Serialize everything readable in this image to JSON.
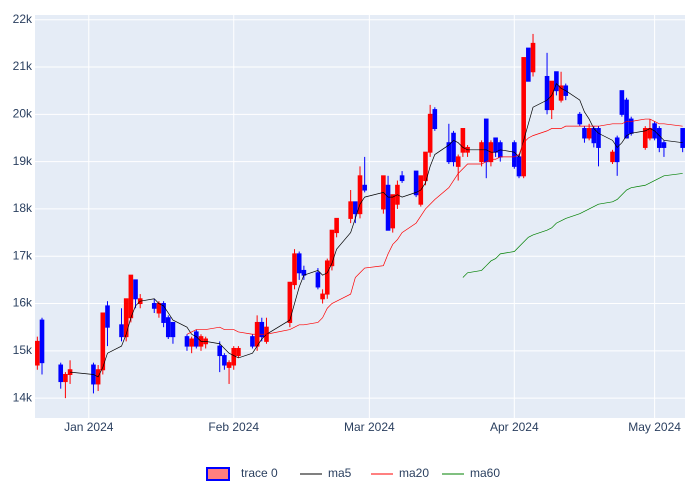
{
  "chart_data": {
    "type": "candlestick",
    "x": [
      "2023-12-21",
      "2023-12-22",
      "2023-12-26",
      "2023-12-27",
      "2023-12-28",
      "2024-01-02",
      "2024-01-03",
      "2024-01-04",
      "2024-01-05",
      "2024-01-08",
      "2024-01-09",
      "2024-01-10",
      "2024-01-11",
      "2024-01-12",
      "2024-01-15",
      "2024-01-16",
      "2024-01-17",
      "2024-01-18",
      "2024-01-19",
      "2024-01-22",
      "2024-01-23",
      "2024-01-24",
      "2024-01-25",
      "2024-01-26",
      "2024-01-29",
      "2024-01-30",
      "2024-01-31",
      "2024-02-01",
      "2024-02-02",
      "2024-02-05",
      "2024-02-06",
      "2024-02-07",
      "2024-02-08",
      "2024-02-13",
      "2024-02-14",
      "2024-02-15",
      "2024-02-16",
      "2024-02-19",
      "2024-02-20",
      "2024-02-21",
      "2024-02-22",
      "2024-02-23",
      "2024-02-26",
      "2024-02-27",
      "2024-02-28",
      "2024-02-29",
      "2024-03-04",
      "2024-03-05",
      "2024-03-06",
      "2024-03-07",
      "2024-03-08",
      "2024-03-11",
      "2024-03-12",
      "2024-03-13",
      "2024-03-14",
      "2024-03-15",
      "2024-03-18",
      "2024-03-19",
      "2024-03-20",
      "2024-03-21",
      "2024-03-22",
      "2024-03-25",
      "2024-03-26",
      "2024-03-27",
      "2024-03-28",
      "2024-03-29",
      "2024-04-01",
      "2024-04-02",
      "2024-04-03",
      "2024-04-04",
      "2024-04-05",
      "2024-04-08",
      "2024-04-09",
      "2024-04-10",
      "2024-04-11",
      "2024-04-12",
      "2024-04-15",
      "2024-04-16",
      "2024-04-17",
      "2024-04-18",
      "2024-04-19",
      "2024-04-22",
      "2024-04-23",
      "2024-04-24",
      "2024-04-25",
      "2024-04-26",
      "2024-04-29",
      "2024-04-30",
      "2024-05-01",
      "2024-05-02",
      "2024-05-03",
      "2024-05-07"
    ],
    "candles": {
      "name": "trace 0",
      "increasing_color": "#ff0000",
      "decreasing_color": "#0000ff",
      "open": [
        14700,
        15650,
        14700,
        14350,
        14500,
        14700,
        14300,
        14600,
        15950,
        15550,
        15300,
        15700,
        16500,
        16000,
        16000,
        15800,
        16000,
        15700,
        15600,
        15300,
        15100,
        15400,
        15100,
        15150,
        15100,
        14900,
        14650,
        14700,
        14900,
        15300,
        15100,
        15600,
        15200,
        15600,
        16400,
        17050,
        16700,
        16650,
        16100,
        16200,
        16800,
        17500,
        17800,
        18150,
        17900,
        18500,
        18000,
        18500,
        17600,
        18100,
        18700,
        18800,
        18100,
        18600,
        19200,
        20100,
        19400,
        19600,
        18900,
        19200,
        19200,
        19000,
        19900,
        19000,
        19500,
        19400,
        19400,
        19100,
        18700,
        21400,
        20900,
        20800,
        20100,
        20900,
        20300,
        20600,
        20000,
        19700,
        19500,
        19700,
        19700,
        19000,
        19500,
        20500,
        20300,
        19900,
        19300,
        19500,
        19800,
        19700,
        19400,
        19700
      ],
      "high": [
        15300,
        15700,
        14750,
        14550,
        14800,
        14750,
        14700,
        15800,
        16050,
        15900,
        16100,
        16600,
        16500,
        16200,
        16100,
        16050,
        16050,
        15750,
        15600,
        15350,
        15300,
        15450,
        15350,
        15300,
        15200,
        14950,
        14800,
        15100,
        15100,
        15350,
        15750,
        15700,
        15700,
        16450,
        17150,
        17100,
        16800,
        16750,
        16300,
        16950,
        17550,
        17800,
        18400,
        18150,
        18900,
        19100,
        18700,
        18700,
        18300,
        18600,
        18800,
        18800,
        18700,
        19200,
        20200,
        20150,
        19800,
        19650,
        19150,
        19700,
        19350,
        19450,
        19900,
        19450,
        19500,
        19450,
        19450,
        19150,
        21200,
        21400,
        21700,
        21300,
        20700,
        20900,
        20900,
        20650,
        20050,
        19750,
        19800,
        19750,
        19750,
        19250,
        19550,
        20500,
        20350,
        19950,
        19750,
        19900,
        19850,
        19750,
        19450,
        19700
      ],
      "low": [
        14600,
        14500,
        14200,
        14000,
        14300,
        14100,
        14150,
        14500,
        15100,
        15200,
        15200,
        15600,
        15900,
        15900,
        15800,
        15700,
        15500,
        15250,
        15150,
        15000,
        14950,
        15050,
        15000,
        15050,
        14550,
        14600,
        14300,
        14600,
        14850,
        15050,
        15000,
        15200,
        15150,
        15500,
        16300,
        16500,
        16500,
        16300,
        16000,
        16100,
        16700,
        17400,
        17700,
        17700,
        17800,
        18350,
        17900,
        17550,
        17500,
        18000,
        18550,
        18250,
        18050,
        18500,
        19100,
        19650,
        18950,
        18900,
        18600,
        19100,
        19100,
        18900,
        18650,
        18900,
        19100,
        19000,
        18850,
        18650,
        18650,
        20700,
        20800,
        20000,
        19900,
        20400,
        20250,
        20300,
        19750,
        19400,
        19450,
        19300,
        18900,
        18950,
        18700,
        19950,
        19500,
        19550,
        19250,
        19450,
        19450,
        19200,
        19100,
        19200
      ],
      "close": [
        15200,
        14750,
        14350,
        14500,
        14600,
        14300,
        14600,
        15800,
        15500,
        15300,
        16100,
        16600,
        16100,
        16100,
        15900,
        16000,
        15600,
        15300,
        15300,
        15100,
        15250,
        15100,
        15300,
        15250,
        14900,
        14700,
        14750,
        15050,
        15050,
        15100,
        15600,
        15300,
        15500,
        16450,
        17050,
        16650,
        16600,
        16350,
        16200,
        16900,
        17550,
        17800,
        18150,
        17900,
        18700,
        18400,
        18700,
        17550,
        18300,
        18500,
        18600,
        18300,
        18700,
        19200,
        20000,
        19700,
        19000,
        19000,
        19100,
        19700,
        19300,
        19400,
        19000,
        19400,
        19200,
        19100,
        18900,
        18700,
        21200,
        20700,
        21500,
        20100,
        20700,
        20500,
        20600,
        20400,
        19800,
        19500,
        19700,
        19400,
        19300,
        19200,
        19000,
        20000,
        19500,
        19600,
        19700,
        19700,
        19500,
        19300,
        19300,
        19300
      ]
    },
    "series": [
      {
        "name": "ma5",
        "color": "#000000",
        "values": [
          null,
          null,
          null,
          null,
          14550,
          14500,
          14450,
          14650,
          14950,
          15100,
          15350,
          15700,
          15950,
          16050,
          16100,
          16000,
          15950,
          15800,
          15650,
          15500,
          15350,
          15300,
          15200,
          15200,
          15150,
          15050,
          14950,
          14900,
          14850,
          14950,
          15100,
          15250,
          15350,
          15650,
          16000,
          16350,
          16600,
          16700,
          16600,
          16650,
          16850,
          17150,
          17500,
          17800,
          18100,
          18250,
          18350,
          18250,
          18250,
          18300,
          18250,
          18350,
          18400,
          18550,
          18900,
          19150,
          19350,
          19450,
          19400,
          19300,
          19250,
          19250,
          19250,
          19200,
          19200,
          19250,
          19200,
          19100,
          19450,
          19800,
          20150,
          20300,
          20400,
          20650,
          20550,
          20500,
          20300,
          20050,
          19900,
          19700,
          19600,
          19450,
          19300,
          19400,
          19550,
          19600,
          19650,
          19700,
          19650,
          19550,
          19450,
          19400
        ]
      },
      {
        "name": "ma20",
        "color": "#ff0000",
        "values": [
          null,
          null,
          null,
          null,
          null,
          null,
          null,
          null,
          null,
          null,
          null,
          null,
          null,
          null,
          null,
          null,
          null,
          null,
          null,
          15350,
          15400,
          15450,
          15450,
          15450,
          15500,
          15450,
          15450,
          15450,
          15400,
          15350,
          15350,
          15350,
          15350,
          15450,
          15500,
          15550,
          15550,
          15600,
          15700,
          15900,
          16000,
          16050,
          16200,
          16550,
          16650,
          16750,
          16800,
          17050,
          17250,
          17350,
          17500,
          17700,
          17850,
          18000,
          18100,
          18200,
          18450,
          18600,
          18750,
          18850,
          18950,
          18950,
          19000,
          19050,
          19050,
          19100,
          19100,
          19150,
          19400,
          19500,
          19550,
          19650,
          19700,
          19700,
          19700,
          19750,
          19750,
          19750,
          19750,
          19750,
          19750,
          19800,
          19800,
          19800,
          19850,
          19850,
          19900,
          19900,
          19850,
          19800,
          19800,
          19750
        ]
      },
      {
        "name": "ma60",
        "color": "#008000",
        "values": [
          null,
          null,
          null,
          null,
          null,
          null,
          null,
          null,
          null,
          null,
          null,
          null,
          null,
          null,
          null,
          null,
          null,
          null,
          null,
          null,
          null,
          null,
          null,
          null,
          null,
          null,
          null,
          null,
          null,
          null,
          null,
          null,
          null,
          null,
          null,
          null,
          null,
          null,
          null,
          null,
          null,
          null,
          null,
          null,
          null,
          null,
          null,
          null,
          null,
          null,
          null,
          null,
          null,
          null,
          null,
          null,
          null,
          null,
          null,
          16550,
          16650,
          16700,
          16800,
          16900,
          16950,
          17050,
          17100,
          17200,
          17300,
          17400,
          17450,
          17550,
          17600,
          17700,
          17750,
          17800,
          17900,
          17950,
          18000,
          18050,
          18100,
          18150,
          18200,
          18300,
          18400,
          18450,
          18500,
          18550,
          18600,
          18650,
          18700,
          18750
        ]
      }
    ],
    "xlim": [
      "2023-12-20T12:00:00Z",
      "2024-05-07T12:00:00Z"
    ],
    "xticks": [
      {
        "value": "2024-01-01",
        "label": "Jan 2024"
      },
      {
        "value": "2024-02-01",
        "label": "Feb 2024"
      },
      {
        "value": "2024-03-01",
        "label": "Mar 2024"
      },
      {
        "value": "2024-04-01",
        "label": "Apr 2024"
      },
      {
        "value": "2024-05-01",
        "label": "May 2024"
      }
    ],
    "ylim": [
      13580,
      22100
    ],
    "yticks": [
      {
        "value": 14000,
        "label": "14k"
      },
      {
        "value": 15000,
        "label": "15k"
      },
      {
        "value": 16000,
        "label": "16k"
      },
      {
        "value": 17000,
        "label": "17k"
      },
      {
        "value": 18000,
        "label": "18k"
      },
      {
        "value": 19000,
        "label": "19k"
      },
      {
        "value": 20000,
        "label": "20k"
      },
      {
        "value": 21000,
        "label": "21k"
      },
      {
        "value": 22000,
        "label": "22k"
      }
    ],
    "grid": true,
    "legend": "bottom"
  }
}
